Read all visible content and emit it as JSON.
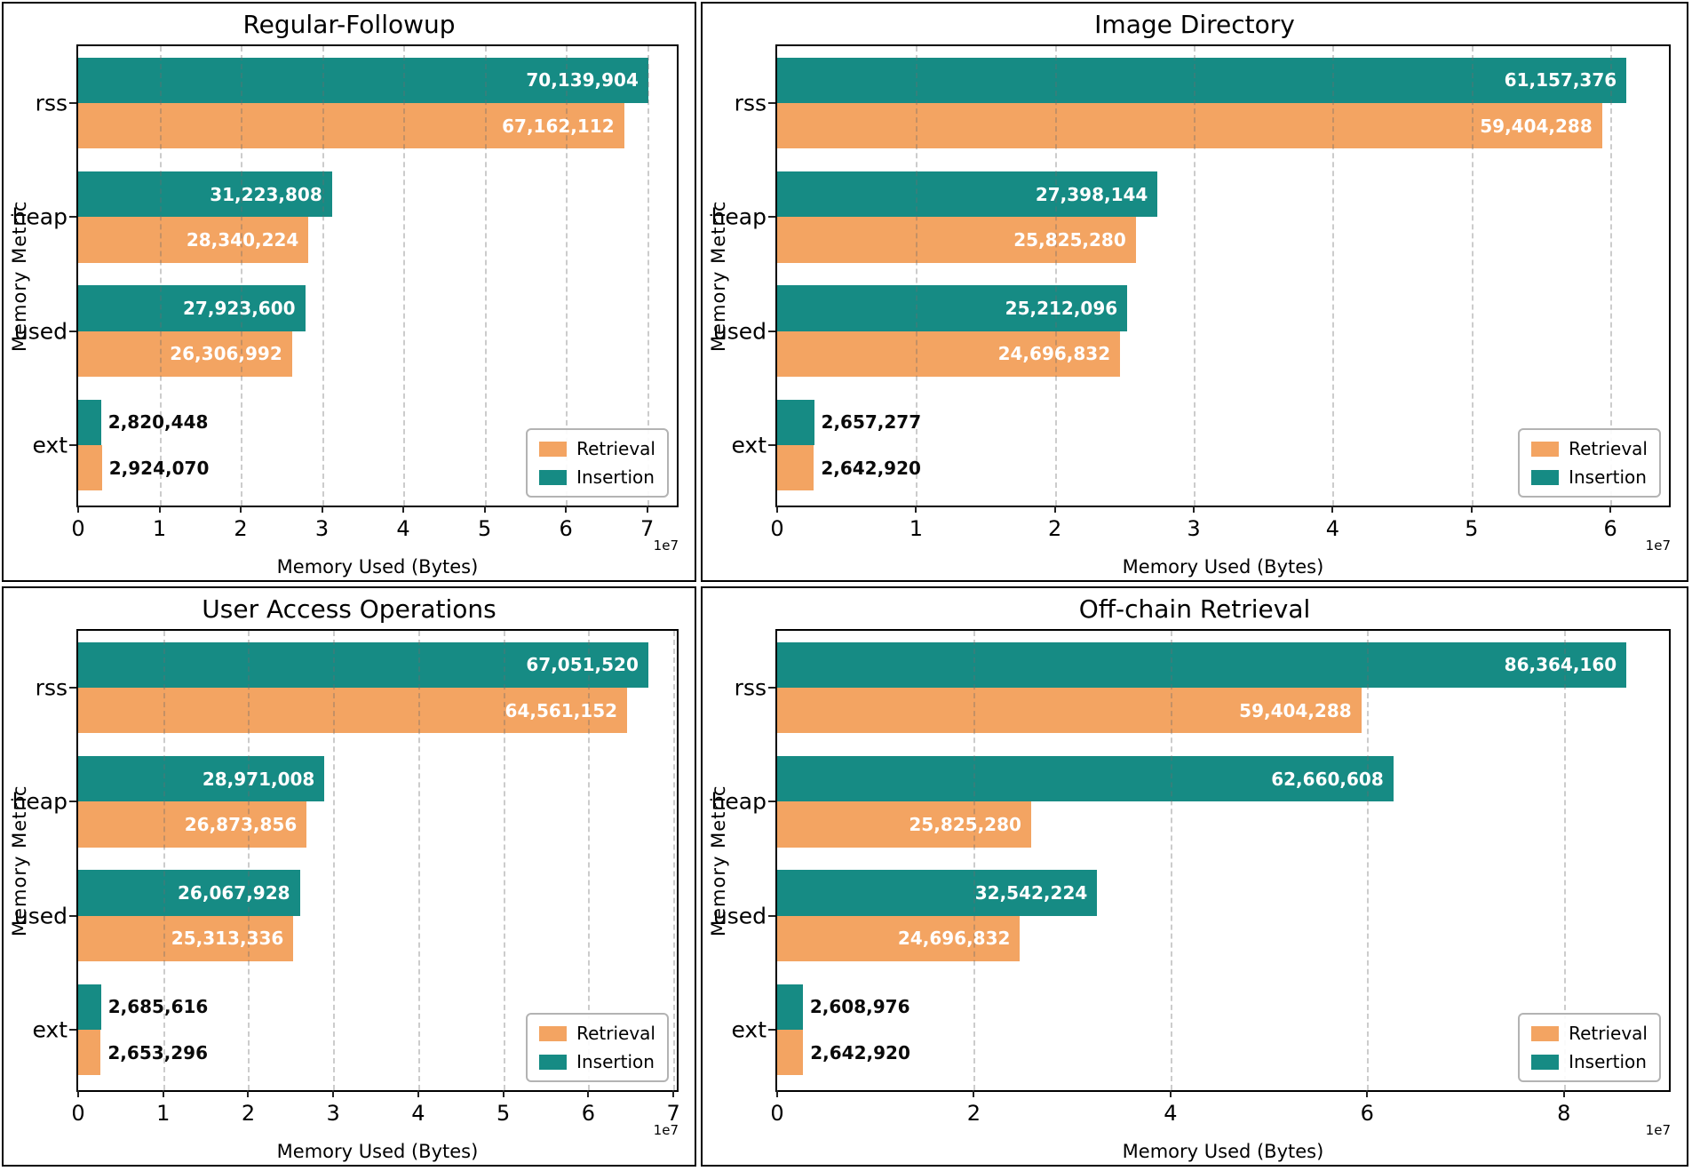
{
  "colors": {
    "retrieval": "#F3A462",
    "insertion": "#168B84",
    "grid_line": "rgba(110,110,110,0.35)",
    "bar_label_inside": "#ffffff",
    "bar_label_outside": "#0a0a0a"
  },
  "chart_data": [
    {
      "type": "bar",
      "orientation": "horizontal",
      "title": "Regular-Followup",
      "xlabel": "Memory Used (Bytes)",
      "ylabel": "Memory Metric",
      "offset_label": "1e7",
      "categories": [
        "rss",
        "heap",
        "used",
        "ext"
      ],
      "series": [
        {
          "name": "Insertion",
          "color": "#168B84",
          "values": [
            70139904,
            31223808,
            27923600,
            2820448
          ]
        },
        {
          "name": "Retrieval",
          "color": "#F3A462",
          "values": [
            67162112,
            28340224,
            26306992,
            2924070
          ]
        }
      ],
      "xtick_units_1e7": [
        0,
        1,
        2,
        3,
        4,
        5,
        6,
        7
      ],
      "xtick_labels": [
        "0",
        "1",
        "2",
        "3",
        "4",
        "5",
        "6",
        "7"
      ],
      "xlim": [
        0,
        73646899
      ],
      "grid": true,
      "legend_position": "lower right",
      "legend": [
        {
          "label": "Retrieval",
          "color": "#F3A462"
        },
        {
          "label": "Insertion",
          "color": "#168B84"
        }
      ]
    },
    {
      "type": "bar",
      "orientation": "horizontal",
      "title": "Image Directory",
      "xlabel": "Memory Used (Bytes)",
      "ylabel": "Memory Metric",
      "offset_label": "1e7",
      "categories": [
        "rss",
        "heap",
        "used",
        "ext"
      ],
      "series": [
        {
          "name": "Insertion",
          "color": "#168B84",
          "values": [
            61157376,
            27398144,
            25212096,
            2657277
          ]
        },
        {
          "name": "Retrieval",
          "color": "#F3A462",
          "values": [
            59404288,
            25825280,
            24696832,
            2642920
          ]
        }
      ],
      "xtick_units_1e7": [
        0,
        1,
        2,
        3,
        4,
        5,
        6
      ],
      "xtick_labels": [
        "0",
        "1",
        "2",
        "3",
        "4",
        "5",
        "6"
      ],
      "xlim": [
        0,
        64215245
      ],
      "grid": true,
      "legend_position": "lower right",
      "legend": [
        {
          "label": "Retrieval",
          "color": "#F3A462"
        },
        {
          "label": "Insertion",
          "color": "#168B84"
        }
      ]
    },
    {
      "type": "bar",
      "orientation": "horizontal",
      "title": "User Access Operations",
      "xlabel": "Memory Used (Bytes)",
      "ylabel": "Memory Metric",
      "offset_label": "1e7",
      "categories": [
        "rss",
        "heap",
        "used",
        "ext"
      ],
      "series": [
        {
          "name": "Insertion",
          "color": "#168B84",
          "values": [
            67051520,
            28971008,
            26067928,
            2685616
          ]
        },
        {
          "name": "Retrieval",
          "color": "#F3A462",
          "values": [
            64561152,
            26873856,
            25313336,
            2653296
          ]
        }
      ],
      "xtick_units_1e7": [
        0,
        1,
        2,
        3,
        4,
        5,
        6,
        7
      ],
      "xtick_labels": [
        "0",
        "1",
        "2",
        "3",
        "4",
        "5",
        "6",
        "7"
      ],
      "xlim": [
        0,
        70404096
      ],
      "grid": true,
      "legend_position": "lower right",
      "legend": [
        {
          "label": "Retrieval",
          "color": "#F3A462"
        },
        {
          "label": "Insertion",
          "color": "#168B84"
        }
      ]
    },
    {
      "type": "bar",
      "orientation": "horizontal",
      "title": "Off-chain Retrieval",
      "xlabel": "Memory Used (Bytes)",
      "ylabel": "Memory Metric",
      "offset_label": "1e7",
      "categories": [
        "rss",
        "heap",
        "used",
        "ext"
      ],
      "series": [
        {
          "name": "Insertion",
          "color": "#168B84",
          "values": [
            86364160,
            62660608,
            32542224,
            2608976
          ]
        },
        {
          "name": "Retrieval",
          "color": "#F3A462",
          "values": [
            59404288,
            25825280,
            24696832,
            2642920
          ]
        }
      ],
      "xtick_units_1e7": [
        0,
        2,
        4,
        6,
        8
      ],
      "xtick_labels": [
        "0",
        "2",
        "4",
        "6",
        "8"
      ],
      "xlim": [
        0,
        90682368
      ],
      "grid": true,
      "legend_position": "lower right",
      "legend": [
        {
          "label": "Retrieval",
          "color": "#F3A462"
        },
        {
          "label": "Insertion",
          "color": "#168B84"
        }
      ]
    }
  ]
}
